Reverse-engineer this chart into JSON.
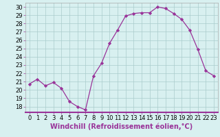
{
  "x": [
    0,
    1,
    2,
    3,
    4,
    5,
    6,
    7,
    8,
    9,
    10,
    11,
    12,
    13,
    14,
    15,
    16,
    17,
    18,
    19,
    20,
    21,
    22,
    23
  ],
  "y": [
    20.7,
    21.3,
    20.5,
    20.9,
    20.2,
    18.6,
    18.0,
    17.6,
    21.7,
    23.2,
    25.6,
    27.2,
    28.9,
    29.2,
    29.3,
    29.3,
    30.0,
    29.8,
    29.2,
    28.5,
    27.2,
    24.9,
    22.3,
    21.7
  ],
  "line_color": "#993399",
  "marker": "D",
  "marker_size": 2.2,
  "bg_color": "#d8f0f0",
  "grid_color": "#aacccc",
  "xlabel": "Windchill (Refroidissement éolien,°C)",
  "xlabel_color": "#993399",
  "spine_color": "#993399",
  "ylim": [
    17.3,
    30.5
  ],
  "xlim": [
    -0.5,
    23.5
  ],
  "yticks": [
    18,
    19,
    20,
    21,
    22,
    23,
    24,
    25,
    26,
    27,
    28,
    29,
    30
  ],
  "xticks": [
    0,
    1,
    2,
    3,
    4,
    5,
    6,
    7,
    8,
    9,
    10,
    11,
    12,
    13,
    14,
    15,
    16,
    17,
    18,
    19,
    20,
    21,
    22,
    23
  ],
  "tick_label_fontsize": 6.0,
  "xlabel_fontsize": 7.0
}
